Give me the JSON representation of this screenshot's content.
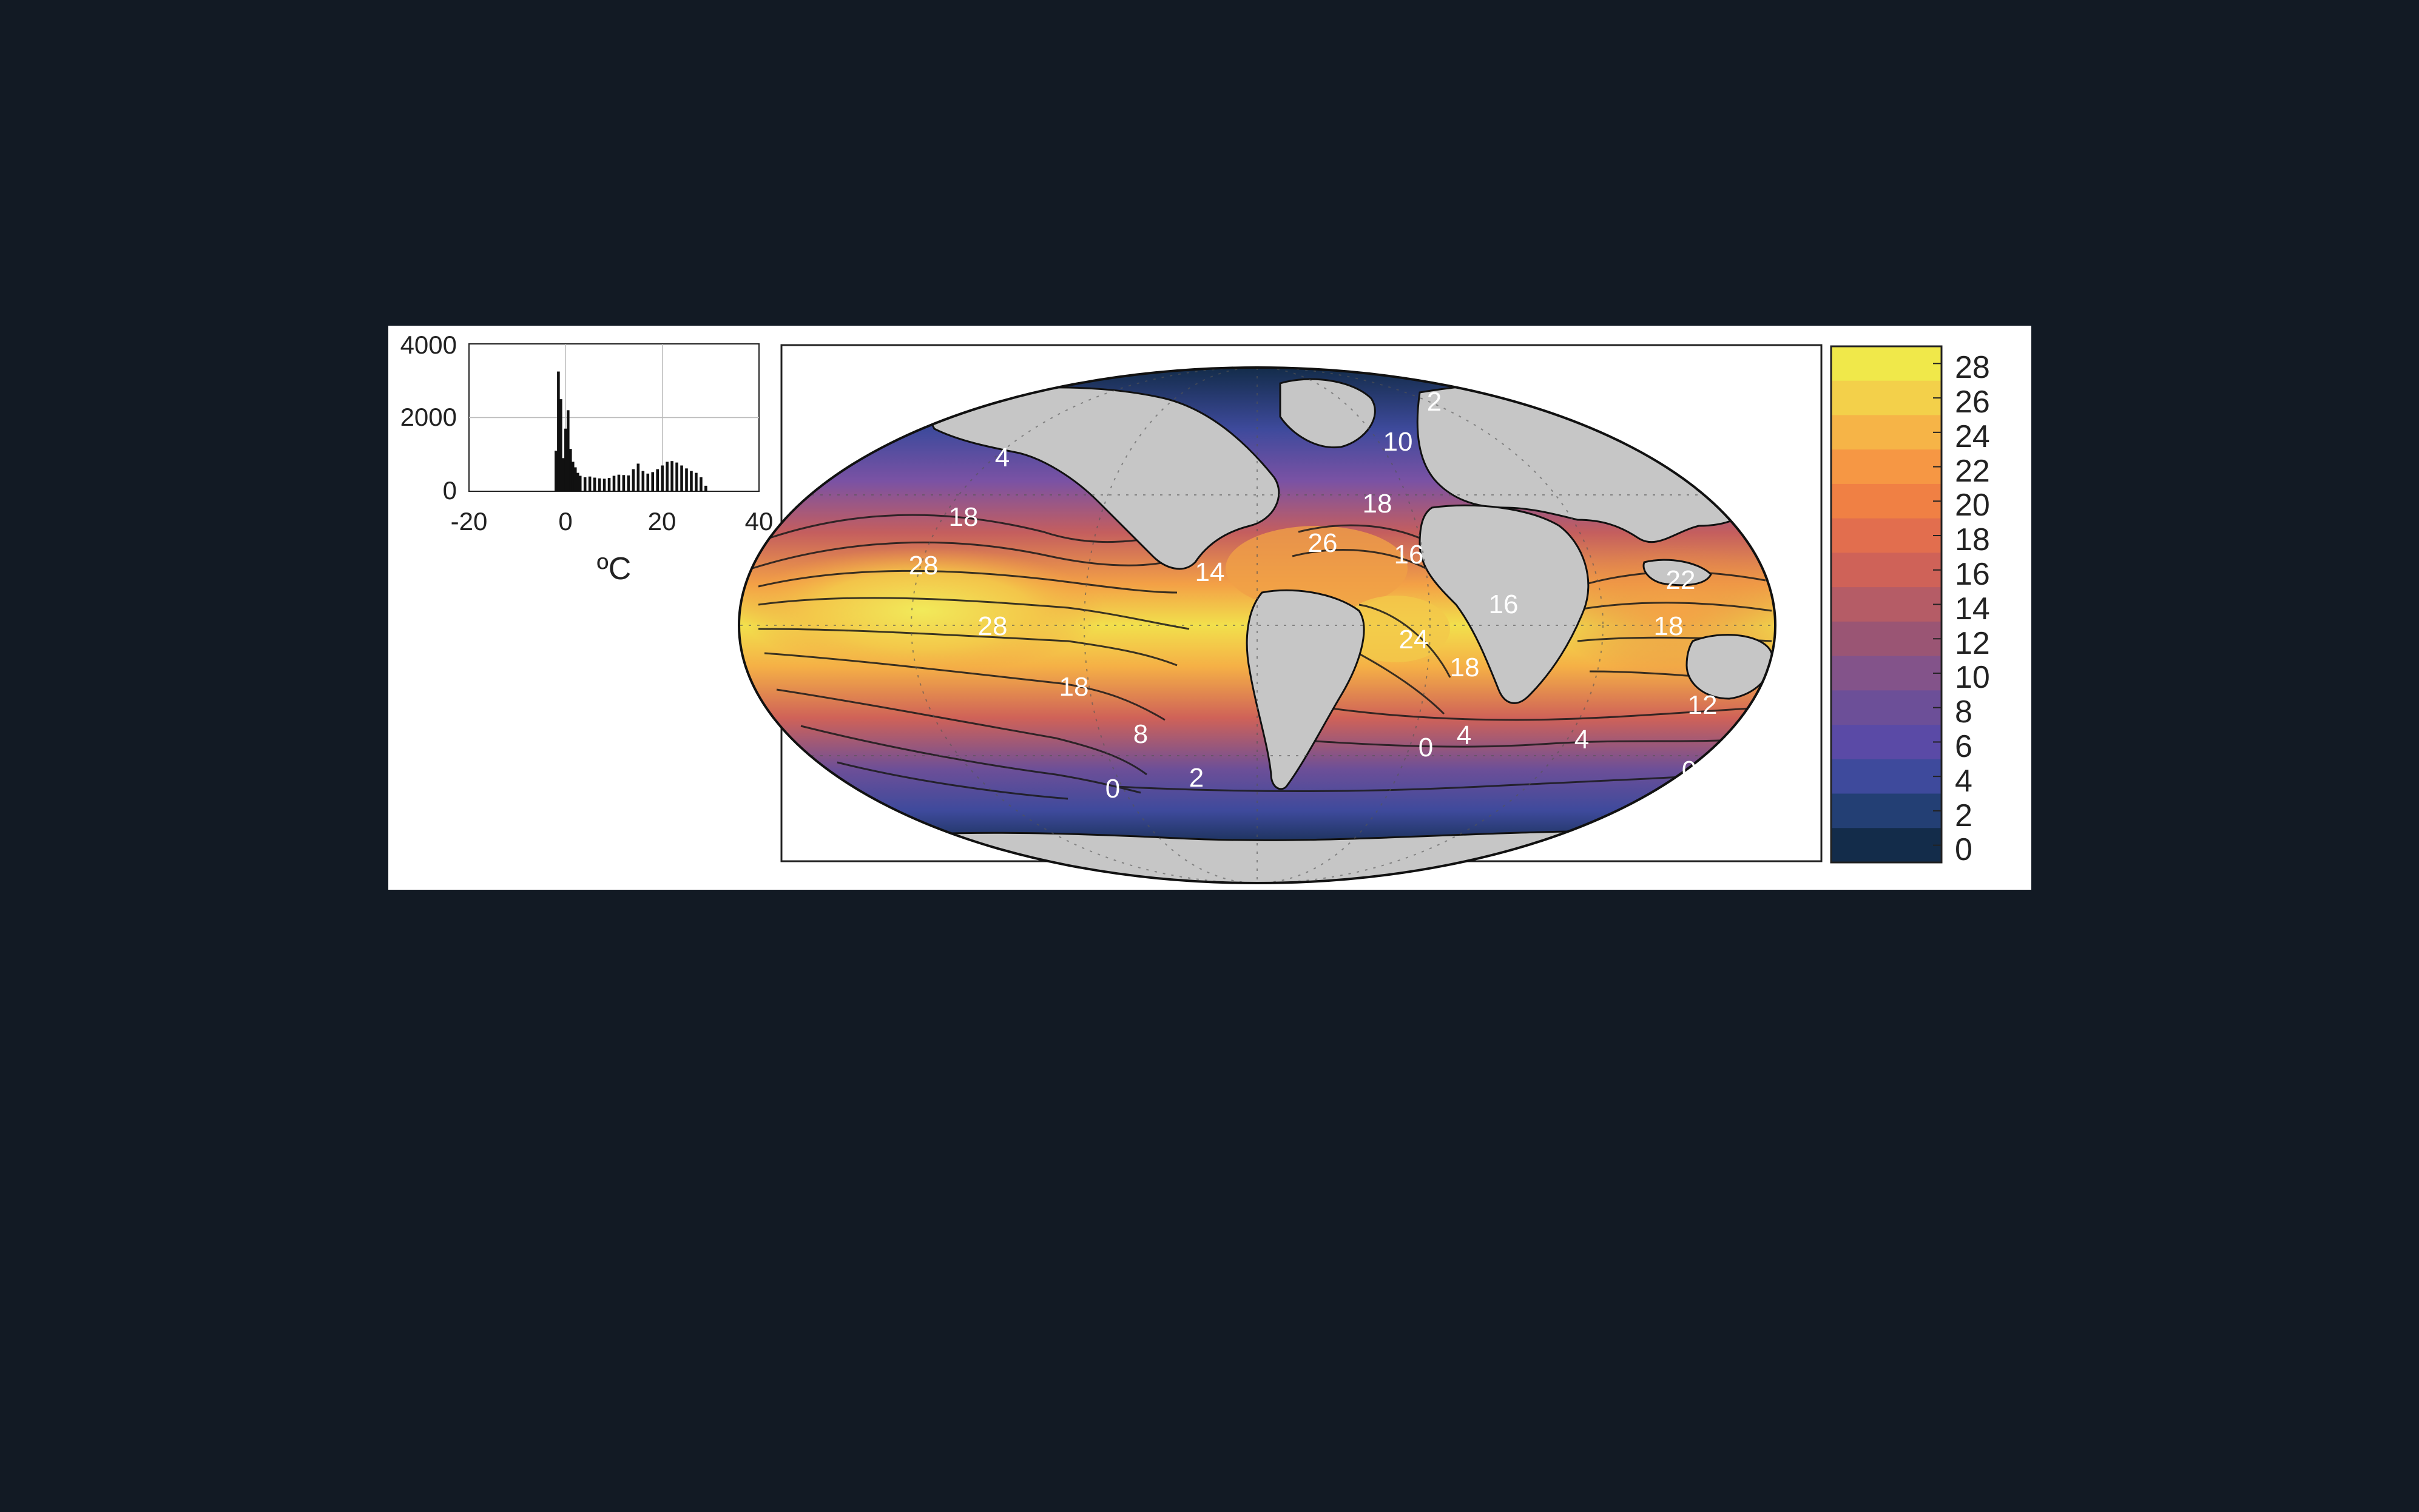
{
  "histogram": {
    "y_ticks": [
      "4000",
      "2000",
      "0"
    ],
    "x_ticks": [
      "-20",
      "0",
      "20",
      "40"
    ],
    "x_label": "ºC",
    "chart_data": {
      "type": "bar",
      "x_range": [
        -20,
        40
      ],
      "y_range": [
        0,
        4000
      ],
      "grid": true,
      "x": [
        -2,
        -1.5,
        -1,
        -0.5,
        0,
        0.5,
        1,
        1.5,
        2,
        2.5,
        3,
        4,
        5,
        6,
        7,
        8,
        9,
        10,
        11,
        12,
        13,
        14,
        15,
        16,
        17,
        18,
        19,
        20,
        21,
        22,
        23,
        24,
        25,
        26,
        27,
        28,
        29
      ],
      "values": [
        1100,
        3250,
        2500,
        900,
        1700,
        2200,
        1150,
        800,
        650,
        500,
        420,
        380,
        400,
        370,
        350,
        340,
        360,
        420,
        450,
        440,
        430,
        600,
        750,
        550,
        480,
        520,
        600,
        700,
        800,
        820,
        780,
        700,
        620,
        550,
        500,
        380,
        150
      ]
    }
  },
  "map": {
    "projection": "world ocean temperature map",
    "contour_labels": [
      "4",
      "18",
      "28",
      "28",
      "18",
      "8",
      "0",
      "2",
      "14",
      "18",
      "26",
      "16",
      "10",
      "2",
      "16",
      "24",
      "18",
      "4",
      "0",
      "4",
      "0",
      "22",
      "18",
      "12"
    ],
    "colorbar_ticks": [
      "28",
      "26",
      "24",
      "22",
      "20",
      "18",
      "16",
      "14",
      "12",
      "10",
      "8",
      "6",
      "4",
      "2",
      "0"
    ],
    "colorbar_colors": [
      "#f0e84a",
      "#f3d04a",
      "#f6b447",
      "#f69744",
      "#f08044",
      "#e26e4e",
      "#cf6258",
      "#b55c66",
      "#9a5574",
      "#83538a",
      "#6c4f98",
      "#5a4aa6",
      "#3e4a9c",
      "#233f74",
      "#132c4a"
    ],
    "land_color": "#c6c6c6"
  }
}
